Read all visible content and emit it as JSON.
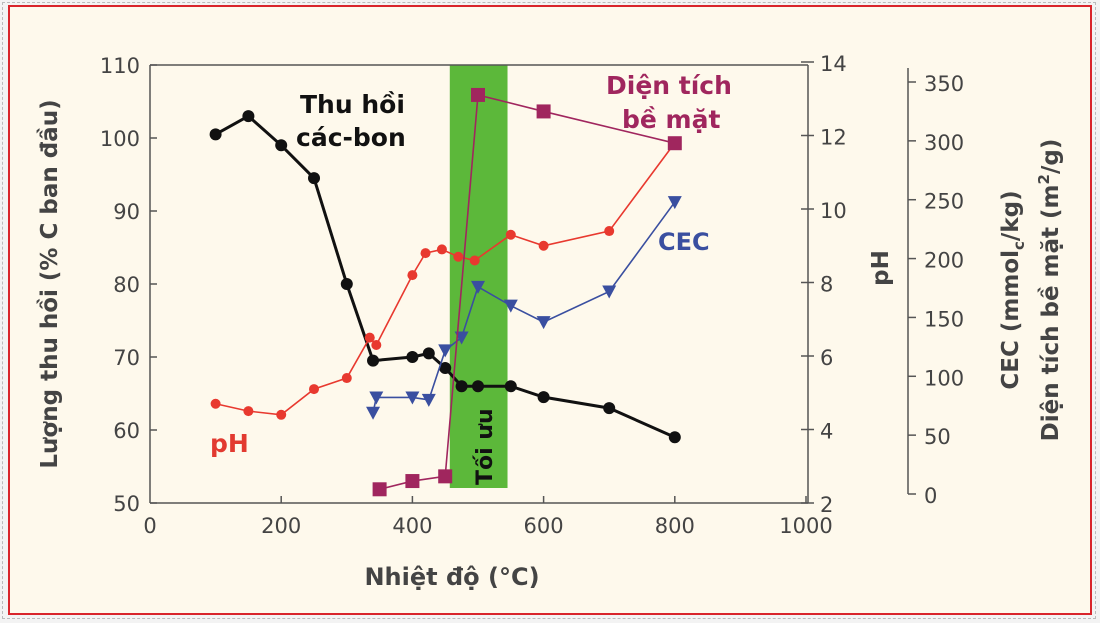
{
  "chart_data": {
    "type": "line",
    "xlabel": "Nhiệt độ (°C)",
    "ylabel_left": "Lượng thu hồi (% C ban đầu)",
    "ylabel_ph": "pH",
    "ylabel_right_1": "CEC (mmol",
    "ylabel_right_1_sub": "c",
    "ylabel_right_1_end": "/kg)",
    "ylabel_right_2": "Diện tích bề mặt (m",
    "ylabel_right_2_sup": "2",
    "ylabel_right_2_end": "/g)",
    "xlim": [
      0,
      1000
    ],
    "ylim_left": [
      50,
      110
    ],
    "ylim_ph": [
      2,
      14
    ],
    "ylim_right": [
      0,
      350
    ],
    "x_ticks": [
      "0",
      "200",
      "400",
      "600",
      "800",
      "1000"
    ],
    "y_left_ticks": [
      "50",
      "60",
      "70",
      "80",
      "90",
      "100",
      "110"
    ],
    "y_ph_ticks": [
      "2",
      "4",
      "6",
      "8",
      "10",
      "12",
      "14"
    ],
    "y_right_ticks": [
      "0",
      "50",
      "100",
      "150",
      "200",
      "250",
      "300",
      "350"
    ],
    "optimal_band": {
      "label": "Tối ưu",
      "x_range": [
        457,
        545
      ],
      "color": "#5cb83a"
    },
    "annotations": {
      "carbon": [
        "Thu hồi",
        "các-bon"
      ],
      "ph": "pH",
      "cec": "CEC",
      "surface": [
        "Diện tích",
        "bề mặt"
      ]
    },
    "series": [
      {
        "name": "Thu hồi các-bon",
        "axis": "left",
        "color": "#111111",
        "marker": "circle",
        "x": [
          100,
          150,
          200,
          250,
          300,
          340,
          400,
          425,
          450,
          475,
          500,
          550,
          600,
          700,
          800
        ],
        "y": [
          100.5,
          103,
          99,
          94.5,
          80,
          69.5,
          70,
          70.5,
          68.5,
          66,
          66,
          66,
          64.5,
          63,
          59
        ]
      },
      {
        "name": "pH",
        "axis": "ph",
        "color": "#e8392f",
        "marker": "circle",
        "x": [
          100,
          150,
          200,
          250,
          300,
          335,
          345,
          400,
          420,
          445,
          470,
          495,
          550,
          600,
          700,
          800
        ],
        "y": [
          4.7,
          4.5,
          4.4,
          5.1,
          5.4,
          6.5,
          6.3,
          8.2,
          8.8,
          8.9,
          8.7,
          8.6,
          9.3,
          9.0,
          9.4,
          11.8
        ]
      },
      {
        "name": "CEC",
        "axis": "right",
        "color": "#3a4fa0",
        "marker": "triangle-down",
        "x": [
          340,
          345,
          400,
          425,
          450,
          475,
          500,
          550,
          600,
          700,
          800
        ],
        "y": [
          69,
          82,
          82,
          80,
          122,
          133,
          176,
          160,
          146,
          172,
          248
        ]
      },
      {
        "name": "Diện tích bề mặt",
        "axis": "right",
        "color": "#a0265e",
        "marker": "square",
        "x": [
          350,
          400,
          450,
          500,
          600,
          800
        ],
        "y": [
          4,
          11,
          15,
          339,
          325,
          298
        ]
      }
    ]
  }
}
